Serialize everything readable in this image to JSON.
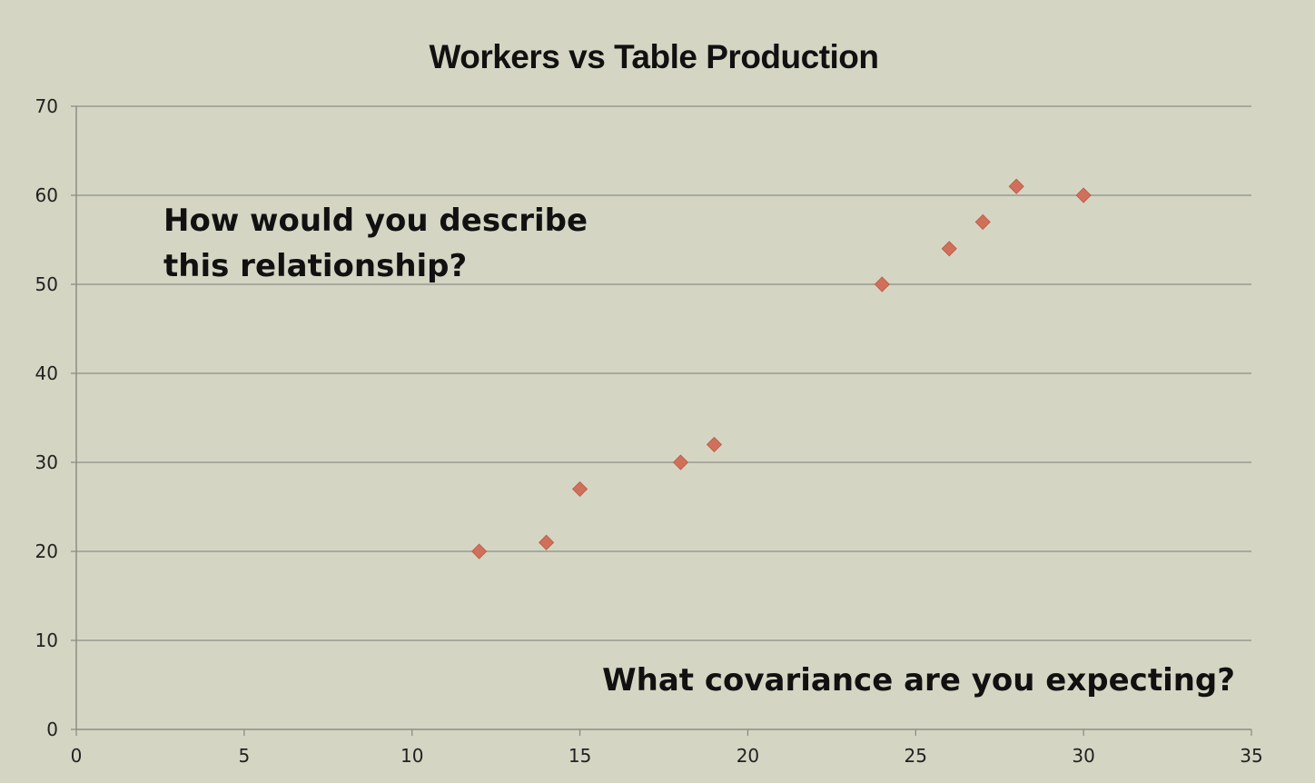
{
  "chart_data": {
    "type": "scatter",
    "title": "Workers vs Table Production",
    "xlabel": "",
    "ylabel": "",
    "xlim": [
      0,
      35
    ],
    "ylim": [
      0,
      70
    ],
    "x_ticks": [
      "0",
      "5",
      "10",
      "15",
      "20",
      "25",
      "30",
      "35"
    ],
    "y_ticks": [
      "0",
      "10",
      "20",
      "30",
      "40",
      "50",
      "60",
      "70"
    ],
    "grid": "horizontal",
    "legend": "none",
    "marker": "diamond",
    "marker_color": "#d0705a",
    "points": [
      {
        "x": 12,
        "y": 20
      },
      {
        "x": 14,
        "y": 21
      },
      {
        "x": 15,
        "y": 27
      },
      {
        "x": 18,
        "y": 30
      },
      {
        "x": 19,
        "y": 32
      },
      {
        "x": 24,
        "y": 50
      },
      {
        "x": 26,
        "y": 54
      },
      {
        "x": 27,
        "y": 57
      },
      {
        "x": 28,
        "y": 61
      },
      {
        "x": 30,
        "y": 60
      }
    ],
    "annotations": [
      {
        "id": "question",
        "lines": [
          "How would you describe",
          "this relationship?"
        ]
      },
      {
        "id": "covariance",
        "lines": [
          "What covariance are you expecting?"
        ]
      }
    ]
  },
  "colors": {
    "background": "#d4d6c3",
    "gridline": "#8c8e86",
    "axis": "#8c8e86",
    "text": "#111111",
    "marker": "#d0705a"
  }
}
